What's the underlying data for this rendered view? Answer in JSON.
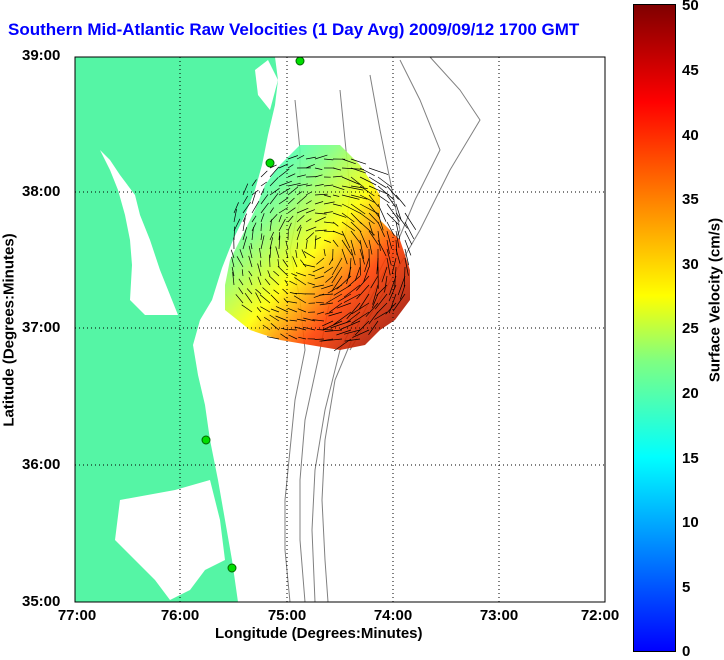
{
  "title": "Southern Mid-Atlantic Raw Velocities (1 Day Avg) 2009/09/12 1700 GMT",
  "map": {
    "xlabel": "Longitude (Degrees:Minutes)",
    "ylabel": "Latitude (Degrees:Minutes)",
    "xticks": [
      "77:00",
      "76:00",
      "75:00",
      "74:00",
      "73:00",
      "72:00"
    ],
    "yticks": [
      "39:00",
      "38:00",
      "37:00",
      "36:00",
      "35:00"
    ],
    "land_color": "#55f5a5",
    "water_color": "#ffffff",
    "grid": "dotted"
  },
  "colorbar": {
    "label": "Surface Velocity (cm/s)",
    "ticks": [
      "50",
      "45",
      "40",
      "35",
      "30",
      "25",
      "20",
      "15",
      "10",
      "5",
      "0"
    ],
    "range": [
      0,
      50
    ],
    "colors": [
      "#0000ff",
      "#00ffff",
      "#ffff00",
      "#ff0000",
      "#800000"
    ]
  }
}
